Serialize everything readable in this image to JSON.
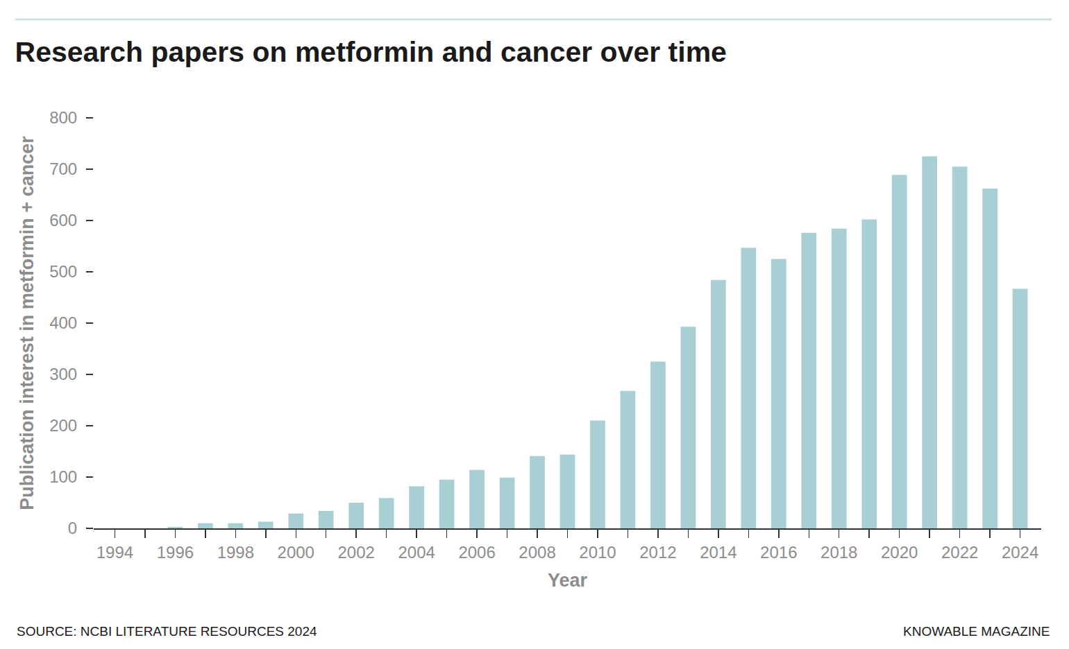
{
  "chart_data": {
    "type": "bar",
    "title": "Research papers on metformin and cancer over time",
    "x_label": "Year",
    "y_label": "Publication interest in metformin + cancer",
    "source": "SOURCE: NCBI LITERATURE RESOURCES 2024",
    "credit": "KNOWABLE MAGAZINE",
    "categories": [
      "1994",
      null,
      "1996",
      null,
      "1998",
      null,
      "2000",
      null,
      "2002",
      null,
      "2004",
      null,
      "2006",
      null,
      "2008",
      null,
      "2010",
      null,
      "2012",
      null,
      "2014",
      null,
      "2016",
      null,
      "2018",
      null,
      "2020",
      null,
      "2022",
      null,
      "2024"
    ],
    "values": [
      0,
      0,
      3,
      10,
      10,
      13,
      29,
      34,
      50,
      59,
      82,
      95,
      114,
      99,
      141,
      144,
      210,
      268,
      325,
      393,
      484,
      547,
      525,
      576,
      584,
      602,
      689,
      725,
      705,
      662,
      467
    ],
    "color": "#a8d0d4",
    "ylim": [
      0,
      800
    ],
    "yticks": [
      0,
      100,
      200,
      300,
      400,
      500,
      600,
      700,
      800
    ],
    "grid": false
  }
}
